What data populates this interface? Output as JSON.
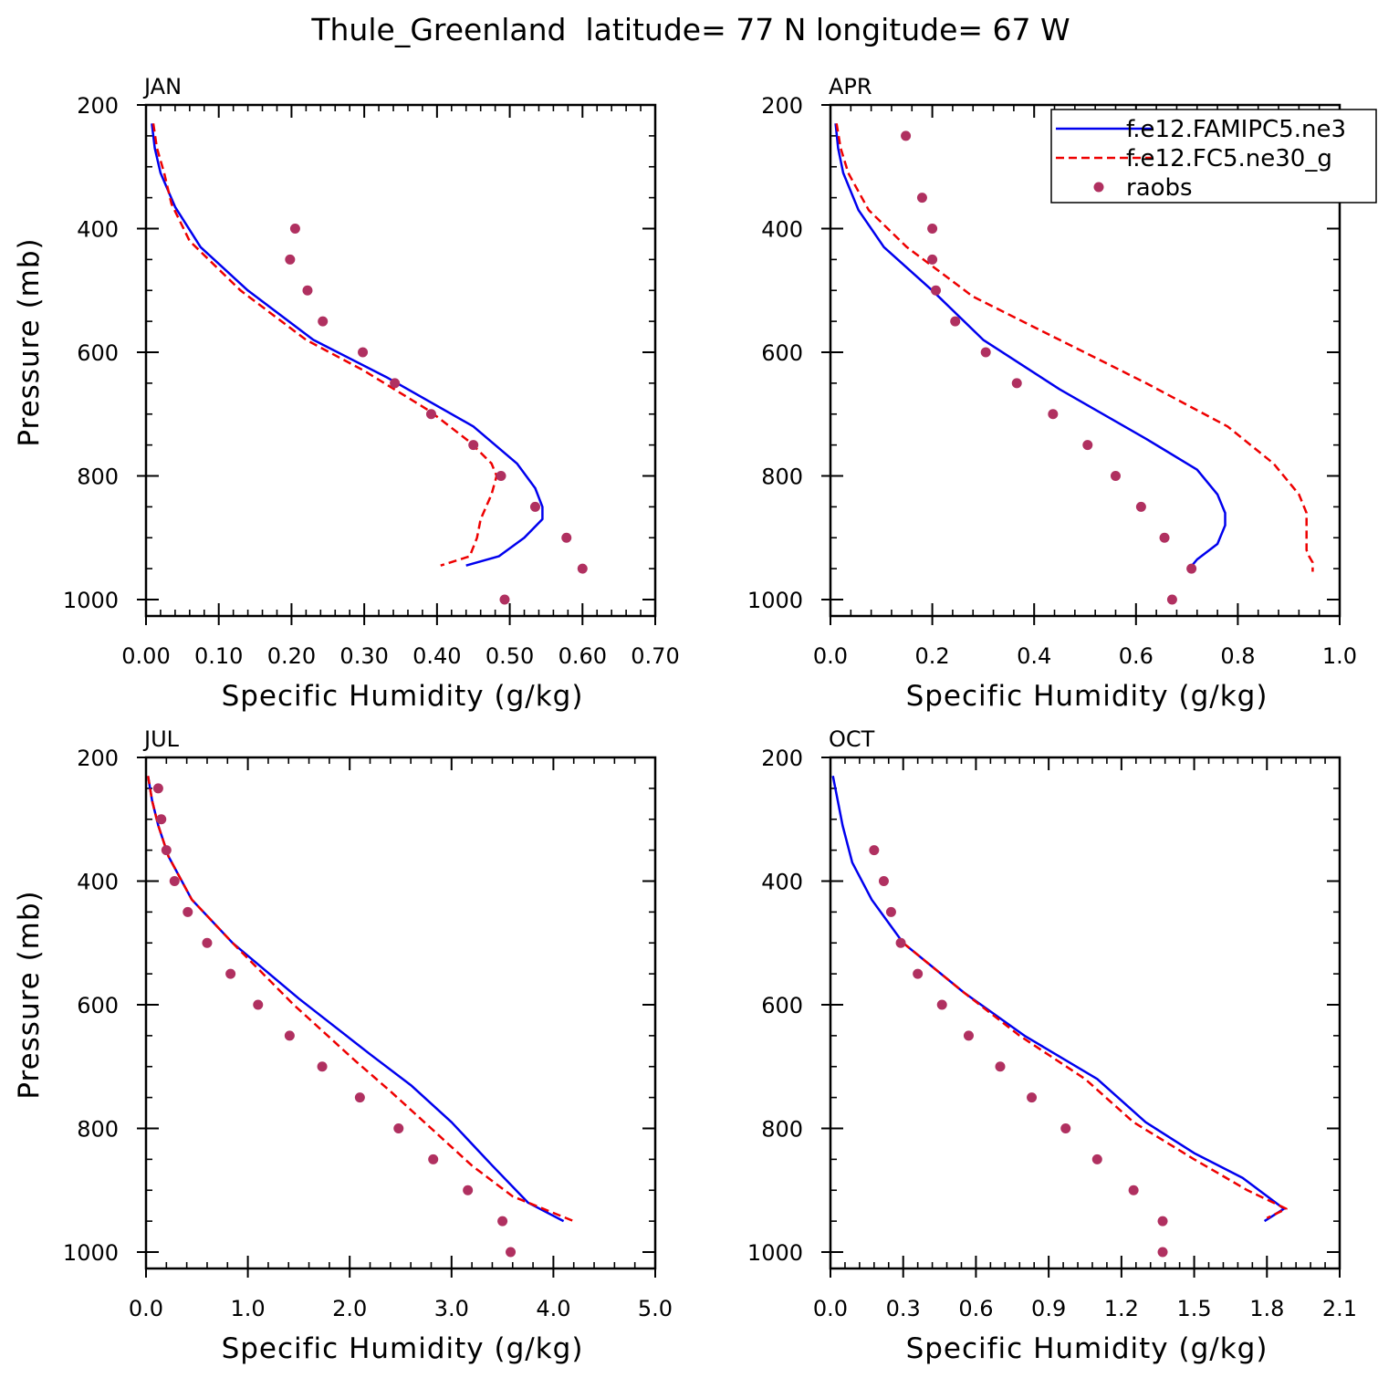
{
  "figure": {
    "title": "Thule_Greenland  latitude= 77 N longitude= 67 W"
  },
  "legend": {
    "placement": "top-right of APR panel",
    "entries": [
      {
        "label": "f.e12.FAMIPC5.ne3",
        "color": "#0000ee",
        "style": "solid"
      },
      {
        "label": "f.e12.FC5.ne30_g",
        "color": "#ee0000",
        "style": "dashed"
      },
      {
        "label": "raobs",
        "color": "#b03060",
        "style": "dots"
      }
    ]
  },
  "chart_data": [
    {
      "type": "line",
      "panel_label": "JAN",
      "xlabel": "Specific Humidity (g/kg)",
      "ylabel": "Pressure (mb)",
      "xlim": [
        0,
        0.7
      ],
      "ylim": [
        1000,
        200
      ],
      "xticks": [
        "0.00",
        "0.10",
        "0.20",
        "0.30",
        "0.40",
        "0.50",
        "0.60",
        "0.70"
      ],
      "yticks": [
        "200",
        "400",
        "600",
        "800",
        "1000"
      ],
      "series": [
        {
          "name": "f.e12.FAMIPC5.ne3",
          "x": [
            0.008,
            0.012,
            0.02,
            0.04,
            0.075,
            0.14,
            0.23,
            0.33,
            0.45,
            0.51,
            0.535,
            0.545,
            0.545,
            0.52,
            0.485,
            0.44
          ],
          "y": [
            230,
            270,
            310,
            365,
            430,
            500,
            580,
            640,
            720,
            780,
            820,
            850,
            870,
            900,
            930,
            945
          ]
        },
        {
          "name": "f.e12.FC5.ne30_g",
          "x": [
            0.01,
            0.015,
            0.025,
            0.035,
            0.06,
            0.13,
            0.22,
            0.3,
            0.39,
            0.445,
            0.475,
            0.482,
            0.475,
            0.46,
            0.455,
            0.445,
            0.405
          ],
          "y": [
            230,
            270,
            310,
            360,
            420,
            500,
            580,
            630,
            695,
            745,
            780,
            800,
            830,
            870,
            900,
            930,
            945
          ]
        },
        {
          "name": "raobs",
          "x": [
            0.205,
            0.198,
            0.222,
            0.243,
            0.298,
            0.342,
            0.392,
            0.45,
            0.488,
            0.535,
            0.578,
            0.6,
            0.493
          ],
          "y": [
            400,
            450,
            500,
            550,
            600,
            650,
            700,
            750,
            800,
            850,
            900,
            950,
            1000
          ]
        }
      ]
    },
    {
      "type": "line",
      "panel_label": "APR",
      "xlabel": "Specific Humidity (g/kg)",
      "ylabel": "",
      "xlim": [
        0,
        1.0
      ],
      "ylim": [
        1000,
        200
      ],
      "xticks": [
        "0.0",
        "0.2",
        "0.4",
        "0.6",
        "0.8",
        "1.0"
      ],
      "yticks": [
        "200",
        "400",
        "600",
        "800",
        "1000"
      ],
      "series": [
        {
          "name": "f.e12.FAMIPC5.ne3",
          "x": [
            0.01,
            0.015,
            0.025,
            0.055,
            0.105,
            0.2,
            0.3,
            0.45,
            0.62,
            0.72,
            0.76,
            0.775,
            0.775,
            0.76,
            0.72,
            0.705
          ],
          "y": [
            230,
            270,
            310,
            370,
            430,
            500,
            580,
            660,
            740,
            790,
            830,
            860,
            880,
            910,
            935,
            950
          ]
        },
        {
          "name": "f.e12.FC5.ne30_g",
          "x": [
            0.012,
            0.02,
            0.035,
            0.075,
            0.15,
            0.28,
            0.45,
            0.62,
            0.78,
            0.87,
            0.92,
            0.935,
            0.935,
            0.935,
            0.94,
            0.947,
            0.947
          ],
          "y": [
            230,
            270,
            310,
            370,
            430,
            510,
            580,
            650,
            720,
            780,
            830,
            860,
            890,
            920,
            930,
            940,
            955
          ]
        },
        {
          "name": "raobs",
          "x": [
            0.148,
            0.18,
            0.2,
            0.2,
            0.207,
            0.245,
            0.305,
            0.366,
            0.437,
            0.505,
            0.56,
            0.61,
            0.656,
            0.709,
            0.671
          ],
          "y": [
            250,
            350,
            400,
            450,
            500,
            550,
            600,
            650,
            700,
            750,
            800,
            850,
            900,
            950,
            1000
          ]
        }
      ]
    },
    {
      "type": "line",
      "panel_label": "JUL",
      "xlabel": "Specific Humidity (g/kg)",
      "ylabel": "Pressure (mb)",
      "xlim": [
        0,
        5.0
      ],
      "ylim": [
        1000,
        200
      ],
      "xticks": [
        "0.0",
        "1.0",
        "2.0",
        "3.0",
        "4.0",
        "5.0"
      ],
      "yticks": [
        "200",
        "400",
        "600",
        "800",
        "1000"
      ],
      "series": [
        {
          "name": "f.e12.FAMIPC5.ne3",
          "x": [
            0.02,
            0.06,
            0.12,
            0.22,
            0.45,
            0.85,
            1.5,
            2.2,
            2.6,
            3.0,
            3.4,
            3.75,
            4.1
          ],
          "y": [
            230,
            270,
            310,
            360,
            430,
            500,
            590,
            680,
            730,
            790,
            860,
            920,
            950
          ]
        },
        {
          "name": "f.e12.FC5.ne30_g",
          "x": [
            0.02,
            0.06,
            0.12,
            0.22,
            0.45,
            0.85,
            1.45,
            2.05,
            2.4,
            2.8,
            3.2,
            3.6,
            4.2
          ],
          "y": [
            230,
            270,
            310,
            360,
            430,
            500,
            600,
            690,
            740,
            800,
            860,
            910,
            950
          ]
        },
        {
          "name": "raobs",
          "x": [
            0.12,
            0.15,
            0.2,
            0.28,
            0.41,
            0.6,
            0.83,
            1.1,
            1.41,
            1.73,
            2.1,
            2.48,
            2.82,
            3.16,
            3.5,
            3.58
          ],
          "y": [
            250,
            300,
            350,
            400,
            450,
            500,
            550,
            600,
            650,
            700,
            750,
            800,
            850,
            900,
            950,
            1000
          ]
        }
      ]
    },
    {
      "type": "line",
      "panel_label": "OCT",
      "xlabel": "Specific Humidity (g/kg)",
      "ylabel": "",
      "xlim": [
        0,
        2.1
      ],
      "ylim": [
        1000,
        200
      ],
      "xticks": [
        "0.0",
        "0.3",
        "0.6",
        "0.9",
        "1.2",
        "1.5",
        "1.8",
        "2.1"
      ],
      "yticks": [
        "200",
        "400",
        "600",
        "800",
        "1000"
      ],
      "series": [
        {
          "name": "f.e12.FAMIPC5.ne3",
          "x": [
            0.01,
            0.03,
            0.05,
            0.09,
            0.17,
            0.3,
            0.55,
            0.8,
            1.1,
            1.3,
            1.5,
            1.7,
            1.87,
            1.79
          ],
          "y": [
            230,
            270,
            310,
            370,
            430,
            500,
            580,
            650,
            720,
            790,
            840,
            880,
            930,
            950
          ]
        },
        {
          "name": "f.e12.FC5.ne30_g",
          "x": [
            0.3,
            0.55,
            0.78,
            1.05,
            1.25,
            1.5,
            1.72,
            1.88,
            1.8
          ],
          "y": [
            500,
            580,
            650,
            720,
            790,
            850,
            900,
            930,
            945
          ]
        },
        {
          "name": "raobs",
          "x": [
            0.18,
            0.22,
            0.25,
            0.29,
            0.36,
            0.46,
            0.57,
            0.7,
            0.83,
            0.97,
            1.1,
            1.25,
            1.37,
            1.37
          ],
          "y": [
            350,
            400,
            450,
            500,
            550,
            600,
            650,
            700,
            750,
            800,
            850,
            900,
            950,
            1000
          ]
        }
      ]
    }
  ]
}
